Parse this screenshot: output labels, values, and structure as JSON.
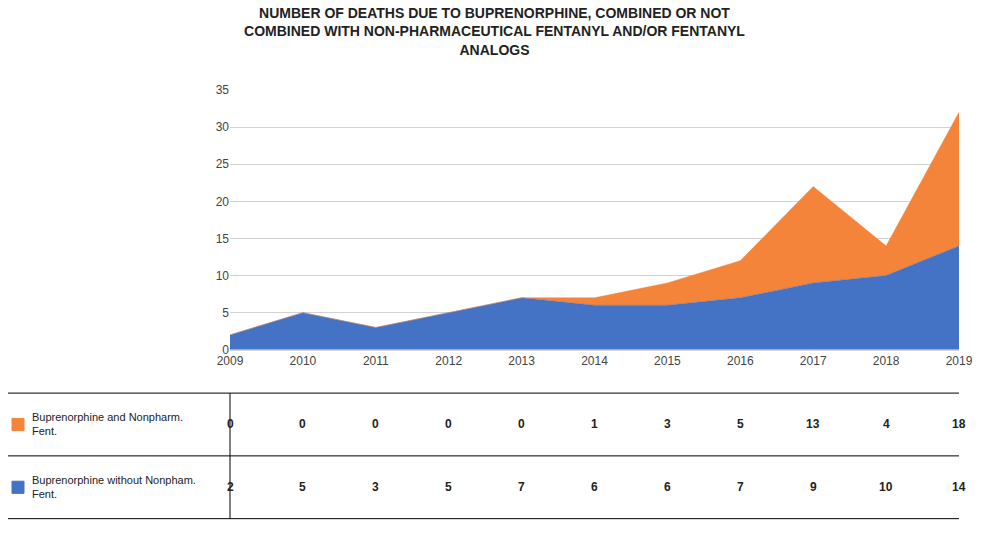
{
  "chart_data": {
    "type": "area",
    "title": "NUMBER OF DEATHS DUE TO BUPRENORPHINE, COMBINED OR NOT\nCOMBINED WITH NON-PHARMACEUTICAL FENTANYL AND/OR FENTANYL\nANALOGS",
    "x": [
      2009,
      2010,
      2011,
      2012,
      2013,
      2014,
      2015,
      2016,
      2017,
      2018,
      2019
    ],
    "series": [
      {
        "name": "Buprenorphine without Nonpham.\nFent.",
        "color": "#4472c4",
        "values": [
          2,
          5,
          3,
          5,
          7,
          6,
          6,
          7,
          9,
          10,
          14
        ]
      },
      {
        "name": "Buprenorphine and Nonpharm.\nFent.",
        "color": "#f4843a",
        "values": [
          0,
          0,
          0,
          0,
          0,
          1,
          3,
          5,
          13,
          4,
          18
        ]
      }
    ],
    "stacked": true,
    "data_labels": true,
    "xlim": [
      2009,
      2019
    ],
    "xticks": [
      2009,
      2010,
      2011,
      2012,
      2013,
      2014,
      2015,
      2016,
      2017,
      2018,
      2019
    ],
    "ylim": [
      0,
      35
    ],
    "yticks": [
      0,
      5,
      10,
      15,
      20,
      25,
      30,
      35
    ],
    "grid": true
  }
}
